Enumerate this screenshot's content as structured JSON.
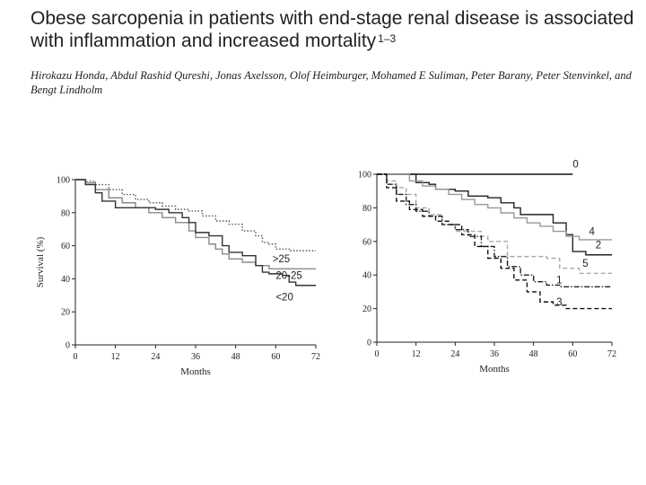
{
  "title": "Obese sarcopenia in patients with end-stage renal disease is associated with inflammation and increased mortality",
  "title_superscript": "1–3",
  "authors": "Hirokazu Honda, Abdul Rashid Qureshi, Jonas Axelsson, Olof Heimburger, Mohamed E Suliman, Peter Barany, Peter Stenvinkel, and Bengt Lindholm",
  "chart_data": [
    {
      "type": "line",
      "title": "",
      "xlabel": "Months",
      "ylabel": "Survival (%)",
      "xlim": [
        0,
        72
      ],
      "ylim": [
        0,
        100
      ],
      "xticks": [
        "0",
        "12",
        "24",
        "36",
        "48",
        "60",
        "72"
      ],
      "yticks": [
        "0",
        "20",
        "40",
        "60",
        "80",
        "100"
      ],
      "series": [
        {
          "name": ">25",
          "style": "dotted",
          "color": "#555555",
          "points": [
            [
              0,
              100
            ],
            [
              3,
              99
            ],
            [
              6,
              97
            ],
            [
              10,
              94
            ],
            [
              14,
              91
            ],
            [
              18,
              88
            ],
            [
              22,
              86
            ],
            [
              26,
              84
            ],
            [
              30,
              82
            ],
            [
              34,
              81
            ],
            [
              38,
              78
            ],
            [
              42,
              75
            ],
            [
              46,
              73
            ],
            [
              50,
              69
            ],
            [
              54,
              66
            ],
            [
              56,
              62
            ],
            [
              58,
              61
            ],
            [
              60,
              58
            ],
            [
              62,
              58
            ],
            [
              64,
              57
            ],
            [
              72,
              57
            ]
          ]
        },
        {
          "name": "20-25",
          "style": "solid",
          "color": "#8a8a8a",
          "points": [
            [
              0,
              100
            ],
            [
              3,
              98
            ],
            [
              6,
              94
            ],
            [
              10,
              89
            ],
            [
              14,
              86
            ],
            [
              18,
              83
            ],
            [
              22,
              80
            ],
            [
              26,
              77
            ],
            [
              30,
              74
            ],
            [
              34,
              69
            ],
            [
              36,
              65
            ],
            [
              40,
              61
            ],
            [
              42,
              58
            ],
            [
              44,
              55
            ],
            [
              46,
              52
            ],
            [
              50,
              50
            ],
            [
              54,
              48
            ],
            [
              58,
              46
            ],
            [
              62,
              46
            ],
            [
              72,
              46
            ]
          ]
        },
        {
          "name": "<20",
          "style": "solid",
          "color": "#333333",
          "points": [
            [
              0,
              100
            ],
            [
              3,
              97
            ],
            [
              6,
              92
            ],
            [
              8,
              87
            ],
            [
              12,
              83
            ],
            [
              18,
              83
            ],
            [
              24,
              82
            ],
            [
              28,
              80
            ],
            [
              32,
              77
            ],
            [
              34,
              74
            ],
            [
              36,
              68
            ],
            [
              40,
              66
            ],
            [
              44,
              60
            ],
            [
              46,
              56
            ],
            [
              50,
              54
            ],
            [
              54,
              48
            ],
            [
              56,
              44
            ],
            [
              58,
              43
            ],
            [
              62,
              42
            ],
            [
              64,
              38
            ],
            [
              66,
              36
            ],
            [
              72,
              36
            ]
          ]
        }
      ],
      "labels": [
        {
          "text": ">25",
          "x": 59,
          "y": 50
        },
        {
          "text": "20-25",
          "x": 60,
          "y": 40
        },
        {
          "text": "<20",
          "x": 60,
          "y": 27
        }
      ]
    },
    {
      "type": "line",
      "title": "",
      "xlabel": "Months",
      "ylabel": "",
      "xlim": [
        0,
        72
      ],
      "ylim": [
        0,
        100
      ],
      "xticks": [
        "0",
        "12",
        "24",
        "36",
        "48",
        "60",
        "72"
      ],
      "yticks": [
        "0",
        "20",
        "40",
        "60",
        "80",
        "100"
      ],
      "series": [
        {
          "name": "0",
          "style": "solid",
          "color": "#111111",
          "points": [
            [
              0,
              100
            ],
            [
              6,
              100
            ],
            [
              6,
              100
            ],
            [
              60,
              100
            ]
          ]
        },
        {
          "name": "4",
          "style": "solid",
          "color": "#222222",
          "points": [
            [
              0,
              100
            ],
            [
              6,
              100
            ],
            [
              12,
              95
            ],
            [
              16,
              94
            ],
            [
              18,
              91
            ],
            [
              24,
              90
            ],
            [
              28,
              87
            ],
            [
              34,
              86
            ],
            [
              38,
              83
            ],
            [
              42,
              80
            ],
            [
              44,
              76
            ],
            [
              48,
              76
            ],
            [
              54,
              76
            ],
            [
              54,
              71
            ],
            [
              58,
              71
            ],
            [
              58,
              64
            ],
            [
              60,
              60
            ],
            [
              60,
              54
            ],
            [
              64,
              52
            ],
            [
              72,
              52
            ]
          ]
        },
        {
          "name": "2",
          "style": "solid",
          "color": "#999999",
          "points": [
            [
              0,
              100
            ],
            [
              6,
              100
            ],
            [
              10,
              96
            ],
            [
              14,
              93
            ],
            [
              18,
              91
            ],
            [
              22,
              88
            ],
            [
              26,
              85
            ],
            [
              30,
              82
            ],
            [
              34,
              80
            ],
            [
              38,
              77
            ],
            [
              42,
              74
            ],
            [
              46,
              71
            ],
            [
              50,
              69
            ],
            [
              54,
              66
            ],
            [
              58,
              63
            ],
            [
              62,
              61
            ],
            [
              72,
              61
            ]
          ]
        },
        {
          "name": "5",
          "style": "dashed",
          "color": "#aaaaaa",
          "points": [
            [
              0,
              100
            ],
            [
              3,
              96
            ],
            [
              6,
              92
            ],
            [
              9,
              88
            ],
            [
              12,
              80
            ],
            [
              16,
              76
            ],
            [
              20,
              72
            ],
            [
              22,
              70
            ],
            [
              24,
              66
            ],
            [
              28,
              66
            ],
            [
              32,
              63
            ],
            [
              34,
              60
            ],
            [
              40,
              60
            ],
            [
              40,
              51
            ],
            [
              48,
              51
            ],
            [
              52,
              50
            ],
            [
              56,
              44
            ],
            [
              60,
              44
            ],
            [
              62,
              41
            ],
            [
              72,
              41
            ]
          ]
        },
        {
          "name": "1",
          "style": "dash-dot",
          "color": "#222222",
          "points": [
            [
              0,
              100
            ],
            [
              3,
              94
            ],
            [
              6,
              88
            ],
            [
              9,
              82
            ],
            [
              12,
              78
            ],
            [
              16,
              75
            ],
            [
              20,
              70
            ],
            [
              24,
              67
            ],
            [
              28,
              63
            ],
            [
              32,
              57
            ],
            [
              36,
              51
            ],
            [
              40,
              45
            ],
            [
              44,
              40
            ],
            [
              48,
              36
            ],
            [
              52,
              34
            ],
            [
              56,
              33
            ],
            [
              72,
              33
            ]
          ]
        },
        {
          "name": "3",
          "style": "dashed",
          "color": "#111111",
          "points": [
            [
              0,
              100
            ],
            [
              3,
              92
            ],
            [
              6,
              84
            ],
            [
              10,
              79
            ],
            [
              14,
              75
            ],
            [
              18,
              72
            ],
            [
              22,
              70
            ],
            [
              26,
              64
            ],
            [
              30,
              57
            ],
            [
              34,
              50
            ],
            [
              38,
              44
            ],
            [
              42,
              37
            ],
            [
              46,
              30
            ],
            [
              50,
              24
            ],
            [
              54,
              22
            ],
            [
              58,
              20
            ],
            [
              72,
              20
            ]
          ]
        }
      ],
      "labels": [
        {
          "text": "0",
          "x": 60,
          "y": 104
        },
        {
          "text": "4",
          "x": 65,
          "y": 64
        },
        {
          "text": "2",
          "x": 67,
          "y": 56
        },
        {
          "text": "5",
          "x": 63,
          "y": 45
        },
        {
          "text": "1",
          "x": 55,
          "y": 35
        },
        {
          "text": "3",
          "x": 55,
          "y": 22
        }
      ]
    }
  ]
}
